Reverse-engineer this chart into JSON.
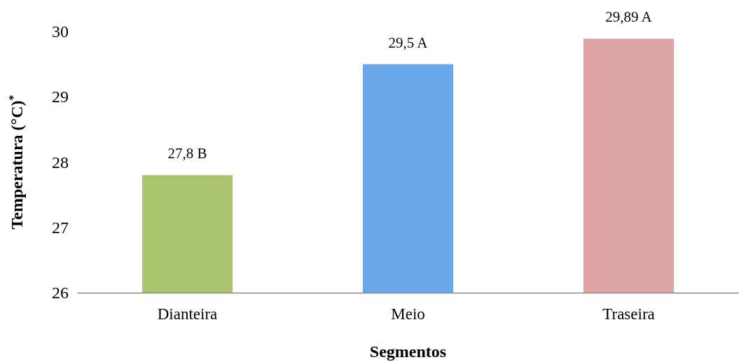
{
  "chart_data": {
    "type": "bar",
    "categories": [
      "Dianteira",
      "Meio",
      "Traseira"
    ],
    "values": [
      27.8,
      29.5,
      29.89
    ],
    "colors": [
      "#a9c46a",
      "#6aa6e8",
      "#dea4a3"
    ],
    "value_labels": [
      "27,8 B",
      "29,5 A",
      "29,89 A"
    ],
    "xlabel": "Segmentos",
    "ylabel": "Temperatura (°C)$^{*}$",
    "ylim": [
      26,
      30
    ],
    "yticks": [
      26,
      27,
      28,
      29,
      30
    ],
    "grid": false
  }
}
